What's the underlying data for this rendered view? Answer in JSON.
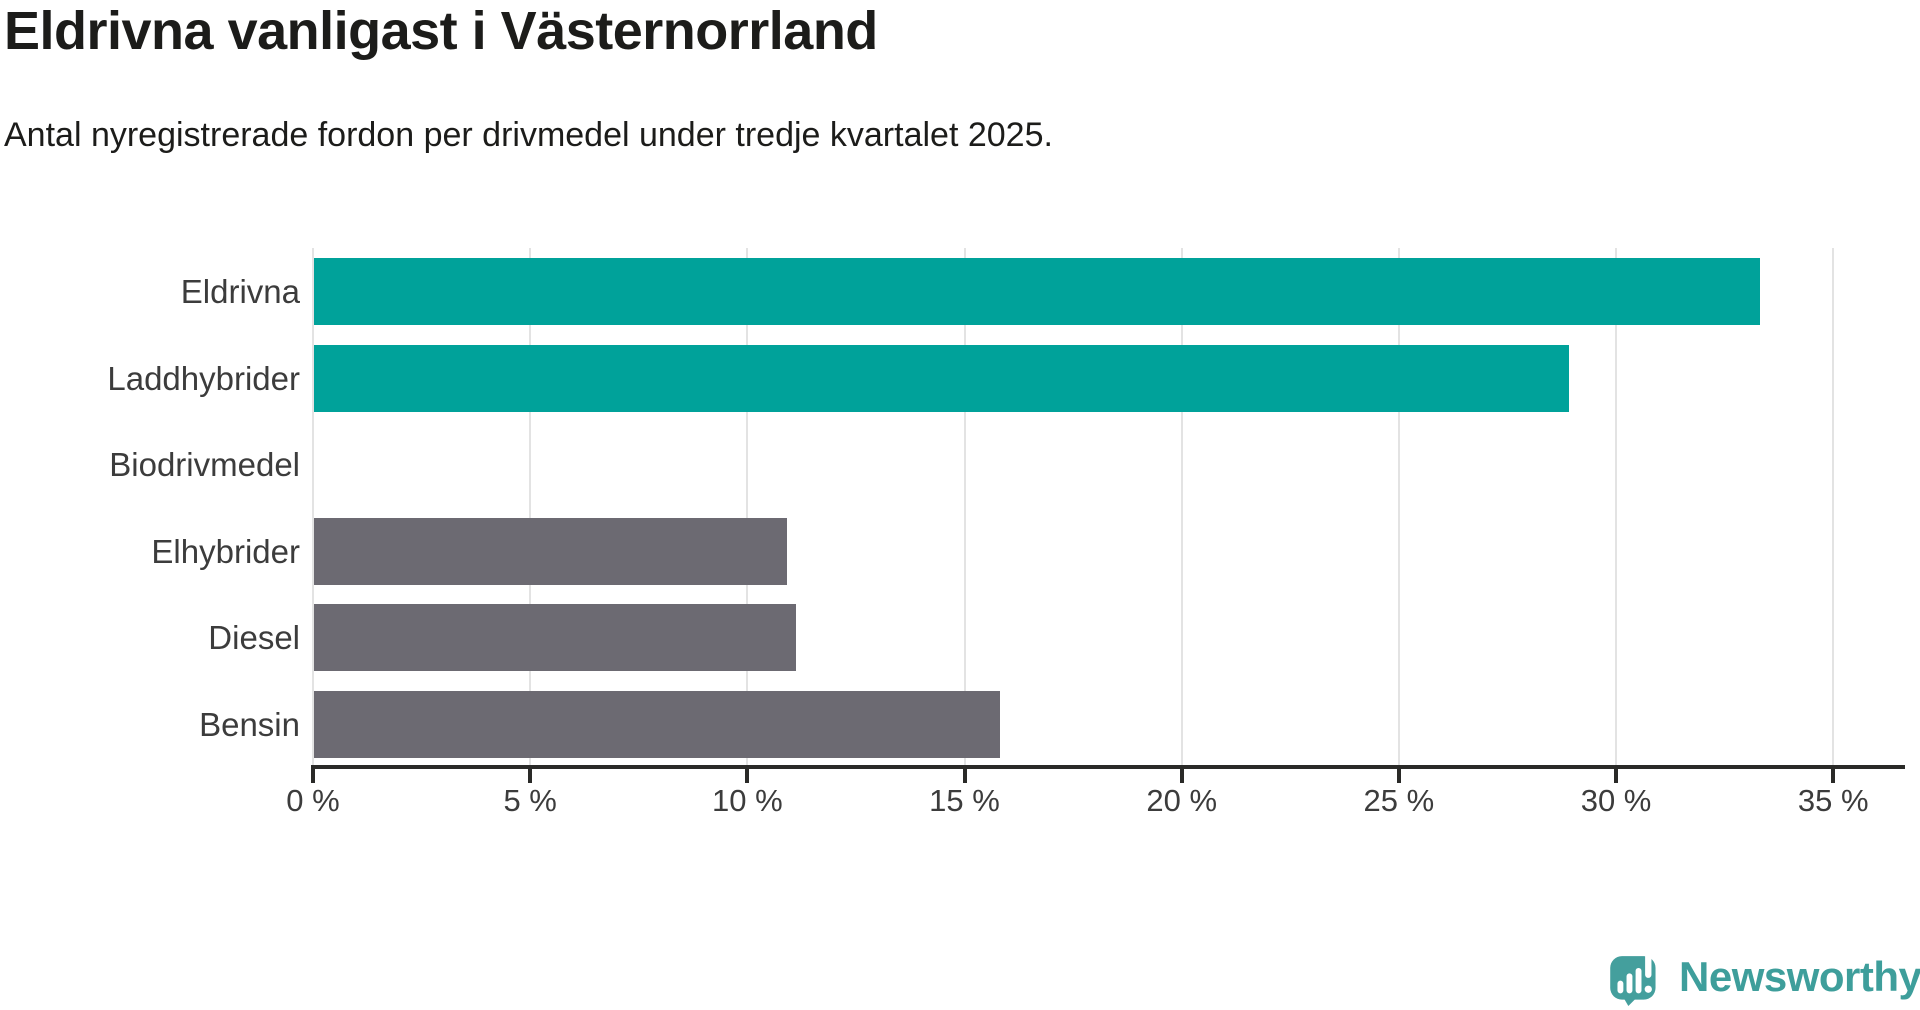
{
  "header": {
    "title": "Eldrivna vanligast i Västernorrland",
    "subtitle": "Antal nyregistrerade fordon per drivmedel under tredje kvartalet 2025."
  },
  "chart_data": {
    "type": "bar",
    "orientation": "horizontal",
    "title": "Eldrivna vanligast i Västernorrland",
    "subtitle": "Antal nyregistrerade fordon per drivmedel under tredje kvartalet 2025.",
    "categories": [
      "Eldrivna",
      "Laddhybrider",
      "Biodrivmedel",
      "Elhybrider",
      "Diesel",
      "Bensin"
    ],
    "values": [
      33.3,
      28.9,
      0,
      10.9,
      11.1,
      15.8
    ],
    "unit": "%",
    "xlim": [
      0,
      35
    ],
    "x_tick_values": [
      0,
      5,
      10,
      15,
      20,
      25,
      30,
      35
    ],
    "x_tick_labels": [
      "0 %",
      "5 %",
      "10 %",
      "15 %",
      "20 %",
      "25 %",
      "30 %",
      "35 %"
    ],
    "grid": "vertical-gridlines-on",
    "legend": "none",
    "colors": {
      "highlight": "#00a29a",
      "default": "#6c6a72",
      "bar_colors": [
        "#00a29a",
        "#00a29a",
        "#6c6a72",
        "#6c6a72",
        "#6c6a72",
        "#6c6a72"
      ],
      "gridline": "#e3e3e3",
      "axis": "#2a2a28",
      "label_text": "#3c3c3c"
    }
  },
  "branding": {
    "logo_text": "Newsworthy",
    "logo_color": "#3e9e9b",
    "logo_icon": "speech-bubble-bar-chart-icon"
  }
}
